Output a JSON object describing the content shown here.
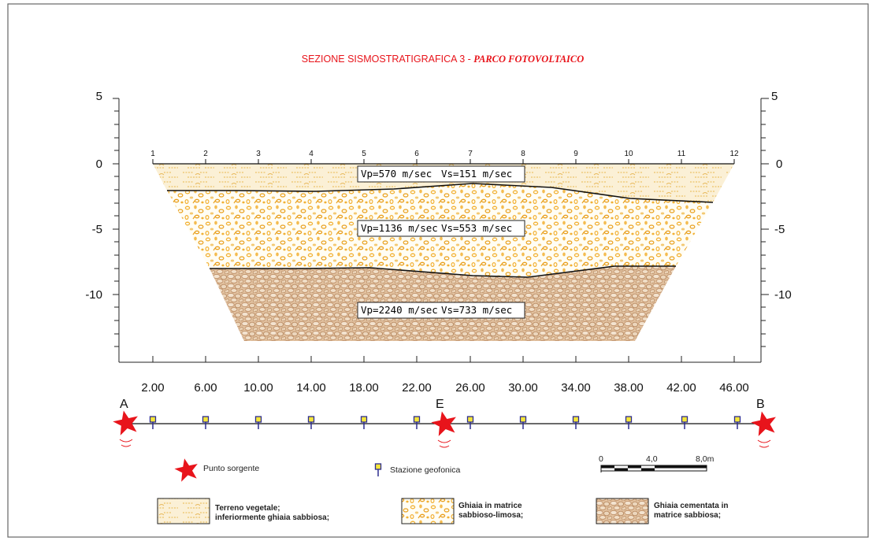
{
  "title": {
    "main": "SEZIONE SISMOSTRATIGRAFICA 3 - ",
    "italic": "PARCO FOTOVOLTAICO",
    "color": "#e8141b"
  },
  "y_axis": {
    "ticks": [
      "5",
      "0",
      "-5",
      "-10"
    ],
    "ticks_right": [
      "5",
      "0",
      "-5",
      "-10"
    ]
  },
  "stations": [
    "1",
    "2",
    "3",
    "4",
    "5",
    "6",
    "7",
    "8",
    "9",
    "10",
    "11",
    "12"
  ],
  "distances": [
    "2.00",
    "6.00",
    "10.00",
    "14.00",
    "18.00",
    "22.00",
    "26.00",
    "30.00",
    "34.00",
    "38.00",
    "42.00",
    "46.00"
  ],
  "layers": [
    {
      "name": "terreno-vegetale",
      "vp": "Vp=570  m/sec",
      "vs": "Vs=151  m/sec",
      "color": "#f3d9a4"
    },
    {
      "name": "ghiaia-matrice",
      "vp": "Vp=1136  m/sec",
      "vs": "Vs=553  m/sec",
      "color": "#f2b134"
    },
    {
      "name": "ghiaia-cementata",
      "vp": "Vp=2240  m/sec",
      "vs": "Vs=733  m/sec",
      "color": "#c89a6e"
    }
  ],
  "sources": {
    "a": "A",
    "e": "E",
    "b": "B"
  },
  "legend": {
    "source_label": "Punto sorgente",
    "station_label": "Stazione geofonica",
    "scale_ticks": [
      "0",
      "4,0",
      "8,0m"
    ],
    "layer1_line1": "Terreno vegetale;",
    "layer1_line2": "inferiormente ghiaia sabbiosa;",
    "layer2_line1": "Ghiaia in matrice",
    "layer2_line2": "sabbioso-limosa;",
    "layer3_line1": "Ghiaia cementata in",
    "layer3_line2": "matrice sabbiosa;"
  },
  "colors": {
    "source_red": "#e8141b",
    "station_blue": "#2d2d8f",
    "station_fill": "#f5e63a"
  }
}
